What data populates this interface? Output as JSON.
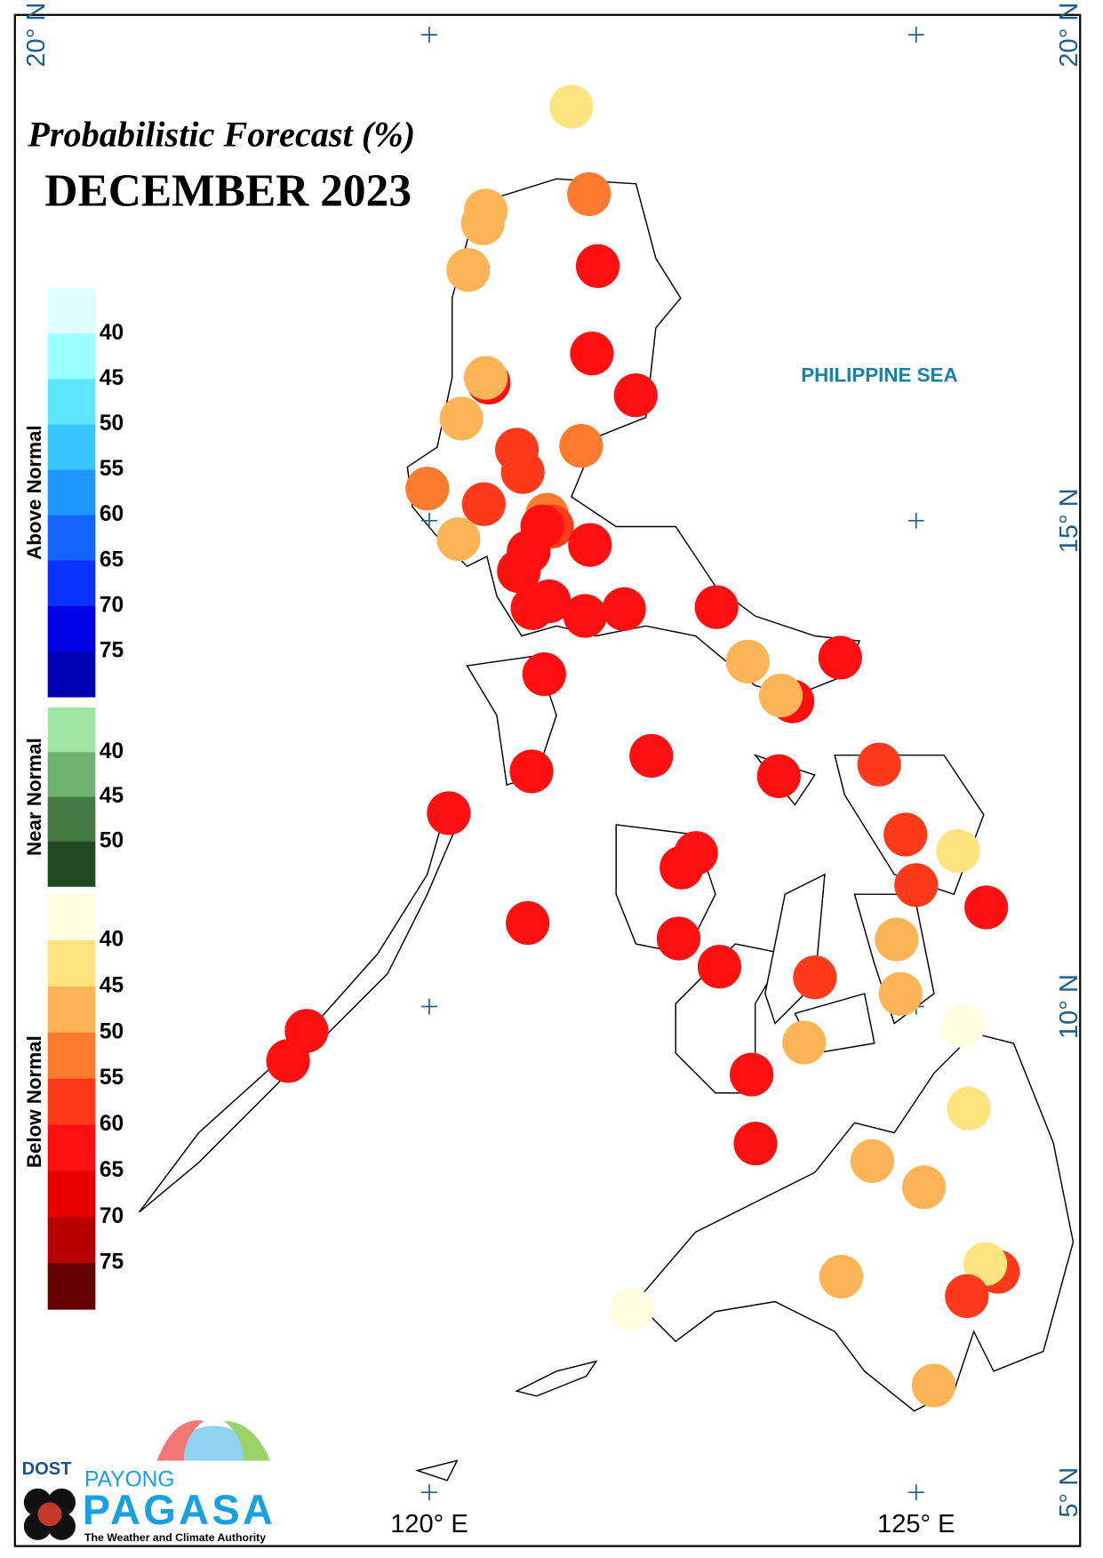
{
  "map": {
    "title": "Probabilistic Forecast (%)",
    "subtitle": "DECEMBER 2023",
    "sea_label": "PHILIPPINE SEA",
    "lat_ticks": [
      {
        "value": 20,
        "label": "20° N"
      },
      {
        "value": 15,
        "label": "15° N"
      },
      {
        "value": 10,
        "label": "10° N"
      },
      {
        "value": 5,
        "label": "5° N"
      }
    ],
    "lon_ticks": [
      {
        "value": 120,
        "label": "120° E"
      },
      {
        "value": 125,
        "label": "125° E"
      }
    ],
    "legend": [
      {
        "name": "Above Normal",
        "levels": [
          40,
          45,
          50,
          55,
          60,
          65,
          70,
          75
        ],
        "colors": [
          "#e0ffff",
          "#99ffff",
          "#5ce6ff",
          "#38c4ff",
          "#1e96ff",
          "#1464ff",
          "#0a32ff",
          "#0000e6",
          "#0000b4"
        ]
      },
      {
        "name": "Near Normal",
        "levels": [
          40,
          45,
          50
        ],
        "colors": [
          "#a0e6a0",
          "#6fb26f",
          "#447a44",
          "#224a22"
        ]
      },
      {
        "name": "Below Normal",
        "levels": [
          40,
          45,
          50,
          55,
          60,
          65,
          70,
          75
        ],
        "colors": [
          "#fffde0",
          "#fde47f",
          "#fdb456",
          "#fd7a2f",
          "#fe3a1a",
          "#fe1010",
          "#e80000",
          "#b80000",
          "#650000"
        ]
      }
    ],
    "stations": [
      {
        "lon": 121.46,
        "lat": 19.26,
        "value": 42
      },
      {
        "lon": 121.64,
        "lat": 18.36,
        "value": 53
      },
      {
        "lon": 120.58,
        "lat": 18.19,
        "value": 48
      },
      {
        "lon": 120.55,
        "lat": 18.06,
        "value": 48
      },
      {
        "lon": 121.73,
        "lat": 17.62,
        "value": 63
      },
      {
        "lon": 120.4,
        "lat": 17.58,
        "value": 48
      },
      {
        "lon": 121.67,
        "lat": 16.72,
        "value": 63
      },
      {
        "lon": 120.61,
        "lat": 16.42,
        "value": 63
      },
      {
        "lon": 120.58,
        "lat": 16.47,
        "value": 48
      },
      {
        "lon": 122.12,
        "lat": 16.29,
        "value": 63
      },
      {
        "lon": 120.33,
        "lat": 16.05,
        "value": 48
      },
      {
        "lon": 120.9,
        "lat": 15.73,
        "value": 58
      },
      {
        "lon": 121.56,
        "lat": 15.77,
        "value": 53
      },
      {
        "lon": 120.96,
        "lat": 15.5,
        "value": 58
      },
      {
        "lon": 119.98,
        "lat": 15.33,
        "value": 53
      },
      {
        "lon": 120.56,
        "lat": 15.17,
        "value": 55
      },
      {
        "lon": 121.21,
        "lat": 15.06,
        "value": 50
      },
      {
        "lon": 121.26,
        "lat": 14.94,
        "value": 58
      },
      {
        "lon": 120.3,
        "lat": 14.81,
        "value": 48
      },
      {
        "lon": 121.16,
        "lat": 14.94,
        "value": 63
      },
      {
        "lon": 121.65,
        "lat": 14.75,
        "value": 62
      },
      {
        "lon": 121.02,
        "lat": 14.68,
        "value": 62
      },
      {
        "lon": 120.92,
        "lat": 14.48,
        "value": 60
      },
      {
        "lon": 121.06,
        "lat": 14.1,
        "value": 60
      },
      {
        "lon": 121.23,
        "lat": 14.17,
        "value": 63
      },
      {
        "lon": 121.6,
        "lat": 14.02,
        "value": 63
      },
      {
        "lon": 122.0,
        "lat": 14.09,
        "value": 63
      },
      {
        "lon": 122.95,
        "lat": 14.11,
        "value": 62
      },
      {
        "lon": 123.27,
        "lat": 13.55,
        "value": 48
      },
      {
        "lon": 124.22,
        "lat": 13.59,
        "value": 63
      },
      {
        "lon": 123.73,
        "lat": 13.14,
        "value": 63
      },
      {
        "lon": 123.61,
        "lat": 13.2,
        "value": 48
      },
      {
        "lon": 121.18,
        "lat": 13.42,
        "value": 63
      },
      {
        "lon": 122.28,
        "lat": 12.58,
        "value": 60
      },
      {
        "lon": 121.05,
        "lat": 12.42,
        "value": 60
      },
      {
        "lon": 123.59,
        "lat": 12.37,
        "value": 63
      },
      {
        "lon": 124.62,
        "lat": 12.49,
        "value": 55
      },
      {
        "lon": 120.2,
        "lat": 11.99,
        "value": 60
      },
      {
        "lon": 124.89,
        "lat": 11.77,
        "value": 55
      },
      {
        "lon": 125.43,
        "lat": 11.6,
        "value": 42
      },
      {
        "lon": 122.74,
        "lat": 11.58,
        "value": 60
      },
      {
        "lon": 122.59,
        "lat": 11.43,
        "value": 60
      },
      {
        "lon": 125.0,
        "lat": 11.25,
        "value": 57
      },
      {
        "lon": 125.72,
        "lat": 11.02,
        "value": 61
      },
      {
        "lon": 121.01,
        "lat": 10.86,
        "value": 63
      },
      {
        "lon": 122.56,
        "lat": 10.7,
        "value": 60
      },
      {
        "lon": 124.8,
        "lat": 10.69,
        "value": 48
      },
      {
        "lon": 122.98,
        "lat": 10.41,
        "value": 60
      },
      {
        "lon": 123.96,
        "lat": 10.3,
        "value": 55
      },
      {
        "lon": 124.84,
        "lat": 10.13,
        "value": 48
      },
      {
        "lon": 125.48,
        "lat": 9.8,
        "value": 38
      },
      {
        "lon": 118.74,
        "lat": 9.75,
        "value": 60
      },
      {
        "lon": 118.55,
        "lat": 9.44,
        "value": 62
      },
      {
        "lon": 123.85,
        "lat": 9.63,
        "value": 48
      },
      {
        "lon": 123.31,
        "lat": 9.3,
        "value": 63
      },
      {
        "lon": 125.54,
        "lat": 8.95,
        "value": 42
      },
      {
        "lon": 123.35,
        "lat": 8.59,
        "value": 63
      },
      {
        "lon": 124.55,
        "lat": 8.41,
        "value": 48
      },
      {
        "lon": 125.08,
        "lat": 8.14,
        "value": 48
      },
      {
        "lon": 125.84,
        "lat": 7.27,
        "value": 55
      },
      {
        "lon": 125.71,
        "lat": 7.35,
        "value": 42
      },
      {
        "lon": 124.23,
        "lat": 7.22,
        "value": 48
      },
      {
        "lon": 125.52,
        "lat": 7.02,
        "value": 55
      },
      {
        "lon": 122.08,
        "lat": 6.88,
        "value": 38
      },
      {
        "lon": 125.18,
        "lat": 6.1,
        "value": 48
      }
    ],
    "logo": {
      "agency": "DOST",
      "brand_top": "PAYONG",
      "brand": "PAGASA",
      "tagline": "The Weather and Climate Authority"
    }
  }
}
